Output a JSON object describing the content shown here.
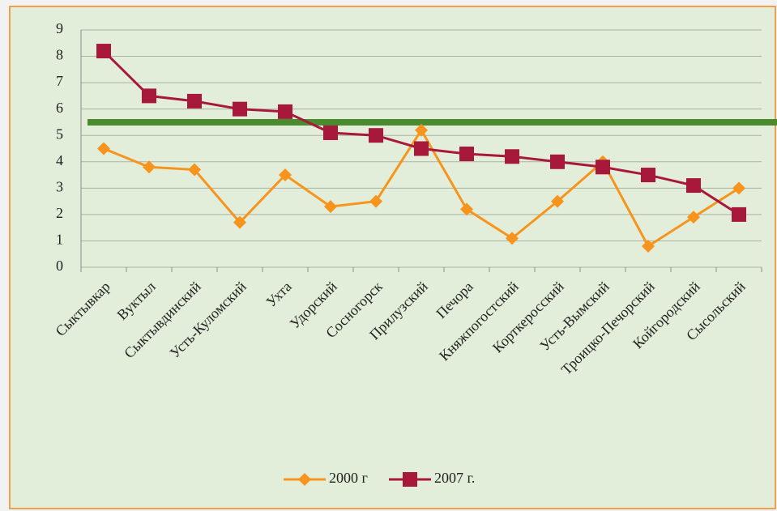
{
  "chart_data": {
    "type": "line",
    "categories": [
      "Сыктывкар",
      "Вуктыл",
      "Сыктывдинский",
      "Усть-Куломский",
      "Ухта",
      "Удорский",
      "Сосногорск",
      "Прилузский",
      "Печора",
      "Княжпогостский",
      "Корткеросский",
      "Усть-Вымский",
      "Троицко-Печорский",
      "Койгородский",
      "Сысольский"
    ],
    "series": [
      {
        "name": "2000 г",
        "color": "#f7941d",
        "marker": "diamond",
        "values": [
          4.5,
          3.8,
          3.7,
          1.7,
          3.5,
          2.3,
          2.5,
          5.2,
          2.2,
          1.1,
          2.5,
          4.0,
          0.8,
          1.9,
          3.0
        ]
      },
      {
        "name": "2007 г.",
        "color": "#a8183a",
        "marker": "square",
        "values": [
          8.2,
          6.5,
          6.3,
          6.0,
          5.9,
          5.1,
          5.0,
          4.5,
          4.3,
          4.2,
          4.0,
          3.8,
          3.5,
          3.1,
          2.0
        ]
      }
    ],
    "reference_line": {
      "value": 5.5,
      "color": "#4b8b2f"
    },
    "ylim": [
      0,
      9
    ],
    "yticks": [
      0,
      1,
      2,
      3,
      4,
      5,
      6,
      7,
      8,
      9
    ],
    "grid": true,
    "legend": "bottom"
  }
}
